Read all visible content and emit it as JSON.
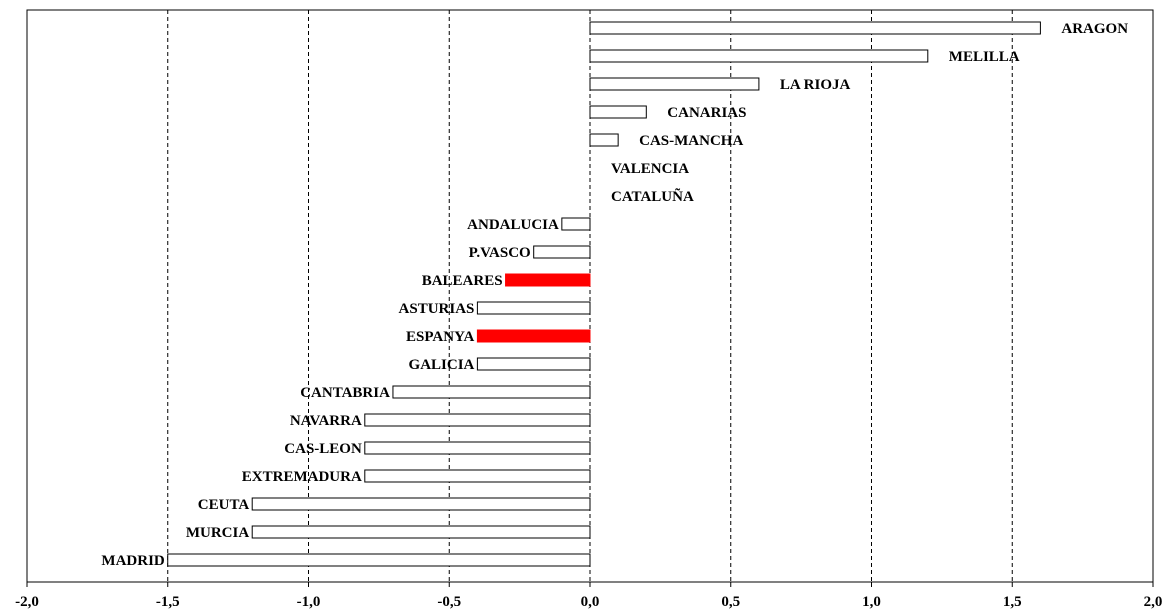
{
  "chart_data": {
    "type": "bar",
    "orientation": "horizontal",
    "xlim": [
      -2.0,
      2.0
    ],
    "x_ticks": [
      "-2,0",
      "-1,5",
      "-1,0",
      "-0,5",
      "0,0",
      "0,5",
      "1,0",
      "1,5",
      "2,0"
    ],
    "grid": "vertical dashed",
    "categories": [
      "ARAGON",
      "MELILLA",
      "LA RIOJA",
      "CANARIAS",
      "CAS-MANCHA",
      "VALENCIA",
      "CATALUÑA",
      "ANDALUCIA",
      "P.VASCO",
      "BALEARES",
      "ASTURIAS",
      "ESPANYA",
      "GALICIA",
      "CANTABRIA",
      "NAVARRA",
      "CAS-LEON",
      "EXTREMADURA",
      "CEUTA",
      "MURCIA",
      "MADRID"
    ],
    "values": [
      1.6,
      1.2,
      0.6,
      0.2,
      0.1,
      0.0,
      0.0,
      -0.1,
      -0.2,
      -0.3,
      -0.4,
      -0.4,
      -0.4,
      -0.7,
      -0.8,
      -0.8,
      -0.8,
      -1.2,
      -1.2,
      -1.5
    ],
    "highlighted": [
      "BALEARES",
      "ESPANYA"
    ],
    "colors": {
      "default_fill": "#ffffff",
      "highlight_fill": "#ff0000",
      "stroke": "#000000"
    }
  }
}
